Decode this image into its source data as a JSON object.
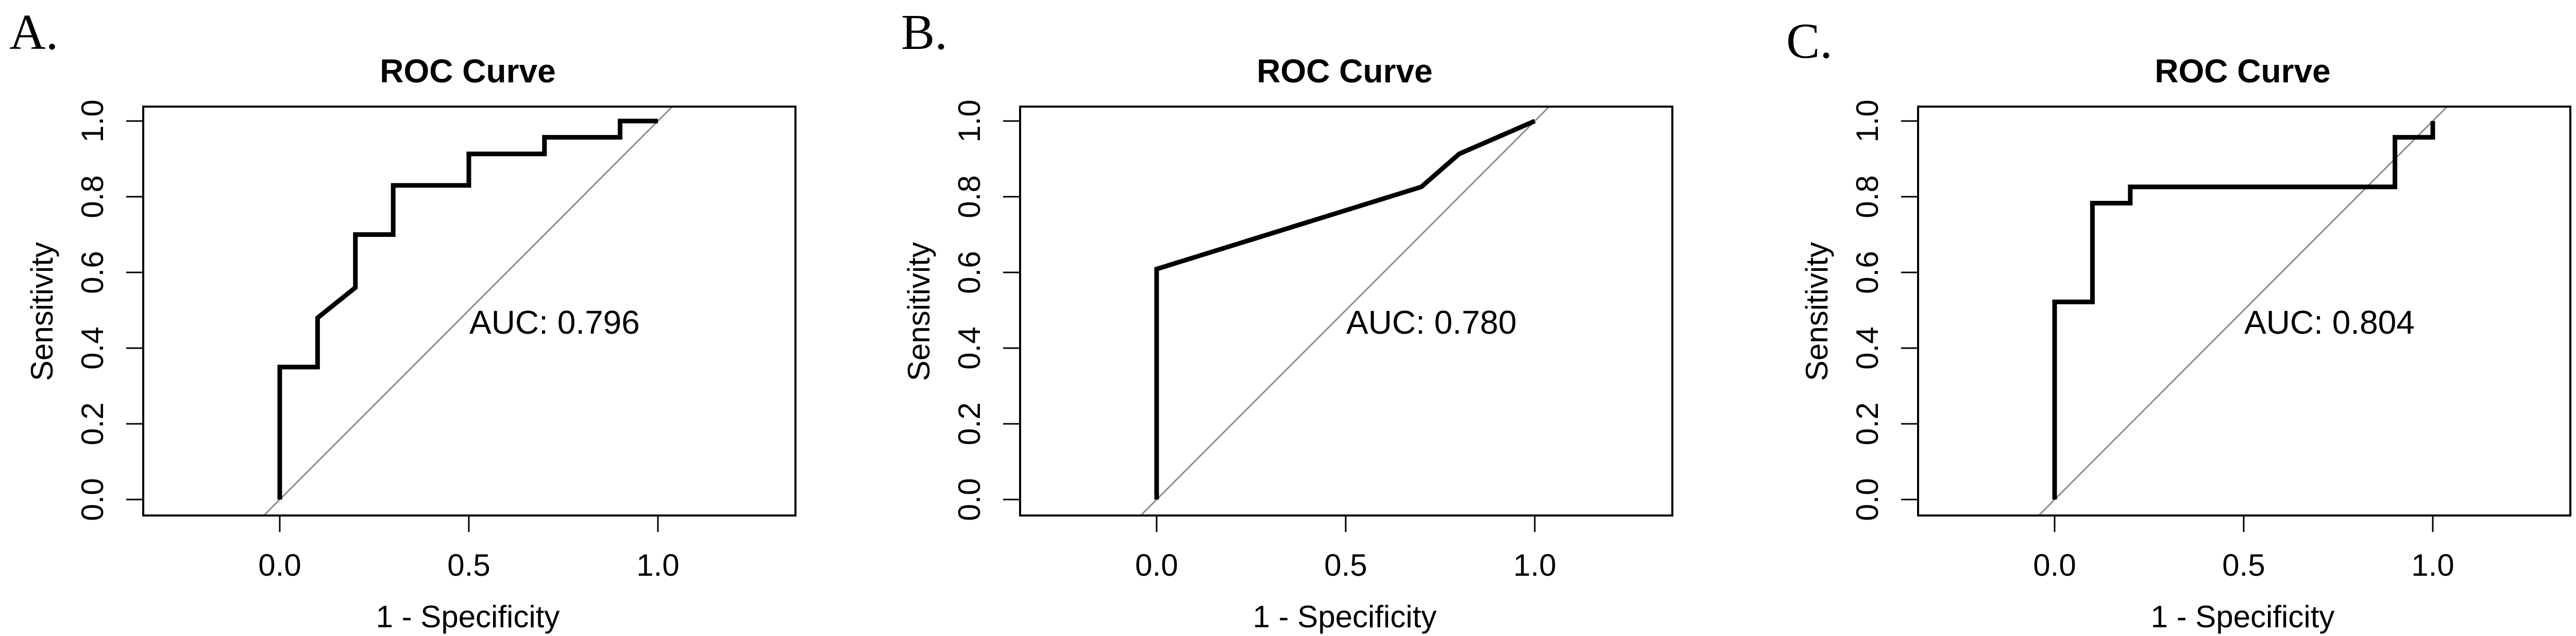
{
  "chart_data": [
    {
      "type": "line",
      "panel_label": "A.",
      "title": "ROC Curve",
      "xlabel": "1 - Specificity",
      "ylabel": "Sensitivity",
      "xlim": [
        -0.35,
        1.36
      ],
      "ylim": [
        -0.04,
        1.04
      ],
      "xticks": [
        "0.0",
        "0.5",
        "1.0"
      ],
      "yticks": [
        "0.0",
        "0.2",
        "0.4",
        "0.6",
        "0.8",
        "1.0"
      ],
      "annotation": "AUC: 0.796",
      "reference_line": "diagonal",
      "series": [
        {
          "name": "ROC",
          "x": [
            0,
            0,
            0.1,
            0.1,
            0.2,
            0.2,
            0.3,
            0.3,
            0.5,
            0.5,
            0.7,
            0.7,
            0.9,
            0.9,
            1.0
          ],
          "y": [
            0,
            0.35,
            0.35,
            0.48,
            0.56,
            0.7,
            0.7,
            0.83,
            0.83,
            0.913,
            0.913,
            0.957,
            0.957,
            1.0,
            1.0
          ]
        }
      ]
    },
    {
      "type": "line",
      "panel_label": "B.",
      "title": "ROC Curve",
      "xlabel": "1 - Specificity",
      "ylabel": "Sensitivity",
      "xlim": [
        -0.35,
        1.36
      ],
      "ylim": [
        -0.04,
        1.04
      ],
      "xticks": [
        "0.0",
        "0.5",
        "1.0"
      ],
      "yticks": [
        "0.0",
        "0.2",
        "0.4",
        "0.6",
        "0.8",
        "1.0"
      ],
      "annotation": "AUC: 0.780",
      "reference_line": "diagonal",
      "series": [
        {
          "name": "ROC",
          "x": [
            0,
            0,
            0.7,
            0.8,
            1.0
          ],
          "y": [
            0,
            0.609,
            0.826,
            0.913,
            1.0
          ]
        }
      ]
    },
    {
      "type": "line",
      "panel_label": "C.",
      "title": "ROC Curve",
      "xlabel": "1 - Specificity",
      "ylabel": "Sensitivity",
      "xlim": [
        -0.35,
        1.36
      ],
      "ylim": [
        -0.04,
        1.04
      ],
      "xticks": [
        "0.0",
        "0.5",
        "1.0"
      ],
      "yticks": [
        "0.0",
        "0.2",
        "0.4",
        "0.6",
        "0.8",
        "1.0"
      ],
      "annotation": "AUC: 0.804",
      "reference_line": "diagonal",
      "series": [
        {
          "name": "ROC",
          "x": [
            0,
            0,
            0.1,
            0.1,
            0.2,
            0.2,
            0.9,
            0.9,
            1.0,
            1.0
          ],
          "y": [
            0,
            0.522,
            0.522,
            0.783,
            0.783,
            0.826,
            0.826,
            0.957,
            0.957,
            1.0
          ]
        }
      ]
    }
  ]
}
